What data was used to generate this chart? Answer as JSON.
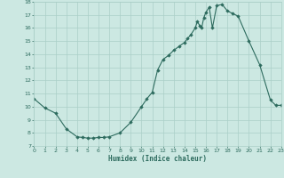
{
  "x": [
    0,
    1,
    2,
    3,
    4,
    4.5,
    5,
    5.5,
    6,
    6.5,
    7,
    8,
    9,
    10,
    10.5,
    11,
    11.5,
    12,
    12.5,
    13,
    13.5,
    14,
    14.3,
    14.6,
    15,
    15.2,
    15.4,
    15.6,
    15.8,
    16,
    16.3,
    16.6,
    17,
    17.5,
    18,
    18.5,
    19,
    20,
    21,
    22,
    22.5,
    23
  ],
  "y": [
    10.6,
    9.9,
    9.5,
    8.3,
    7.7,
    7.65,
    7.6,
    7.6,
    7.65,
    7.65,
    7.7,
    8.0,
    8.8,
    10.0,
    10.6,
    11.1,
    12.8,
    13.6,
    13.9,
    14.3,
    14.6,
    14.9,
    15.2,
    15.5,
    16.0,
    16.5,
    16.2,
    16.0,
    16.8,
    17.2,
    17.6,
    16.0,
    17.7,
    17.8,
    17.3,
    17.1,
    16.9,
    15.0,
    13.2,
    10.5,
    10.1,
    10.1
  ],
  "xlabel": "Humidex (Indice chaleur)",
  "xlim": [
    0,
    23
  ],
  "ylim": [
    7,
    18
  ],
  "yticks": [
    7,
    8,
    9,
    10,
    11,
    12,
    13,
    14,
    15,
    16,
    17,
    18
  ],
  "xticks": [
    0,
    1,
    2,
    3,
    4,
    5,
    6,
    7,
    8,
    9,
    10,
    11,
    12,
    13,
    14,
    15,
    16,
    17,
    18,
    19,
    20,
    21,
    22,
    23
  ],
  "line_color": "#2d6b5e",
  "marker_color": "#2d6b5e",
  "bg_color": "#cce8e2",
  "grid_color": "#aacfc8",
  "font_color": "#2d6b5e",
  "figsize": [
    3.2,
    2.0
  ],
  "dpi": 100
}
